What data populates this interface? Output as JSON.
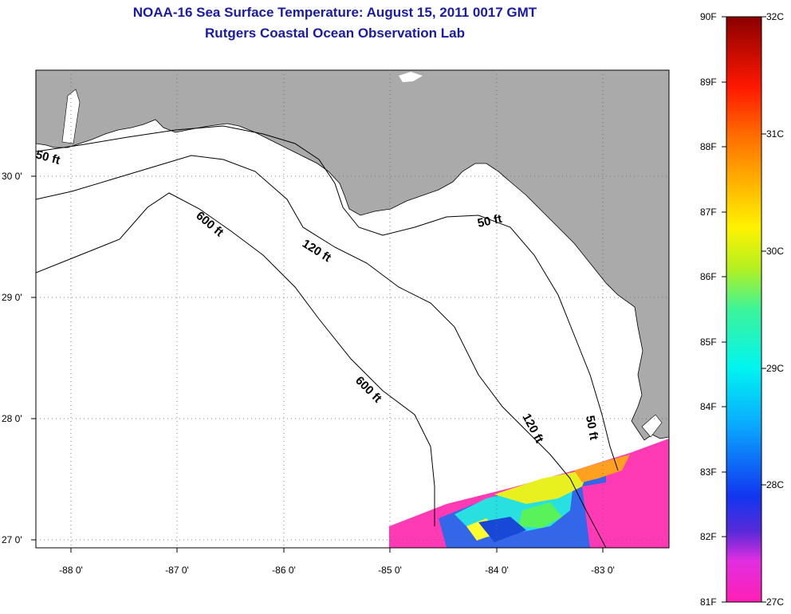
{
  "header": {
    "title": "NOAA-16 Sea Surface Temperature:  August 15, 2011 0017 GMT",
    "subtitle": "Rutgers Coastal Ocean Observation Lab"
  },
  "map": {
    "land_color": "#aaaaaa",
    "water_color": "#ffffff",
    "lon_labels": [
      "-88 0'",
      "-87 0'",
      "-86 0'",
      "-85 0'",
      "-84 0'",
      "-83 0'"
    ],
    "lat_labels": [
      "30 0'",
      "29 0'",
      "28 0'",
      "27 0'"
    ],
    "depth_labels": [
      "50 ft",
      "600 ft",
      "120 ft",
      "50 ft",
      "600 ft",
      "120 ft",
      "50 ft"
    ]
  },
  "colorbar": {
    "f_labels": [
      "90F",
      "89F",
      "88F",
      "87F",
      "86F",
      "85F",
      "84F",
      "83F",
      "82F",
      "81F"
    ],
    "c_labels": [
      "32C",
      "31C",
      "30C",
      "29C",
      "28C",
      "27C"
    ]
  }
}
